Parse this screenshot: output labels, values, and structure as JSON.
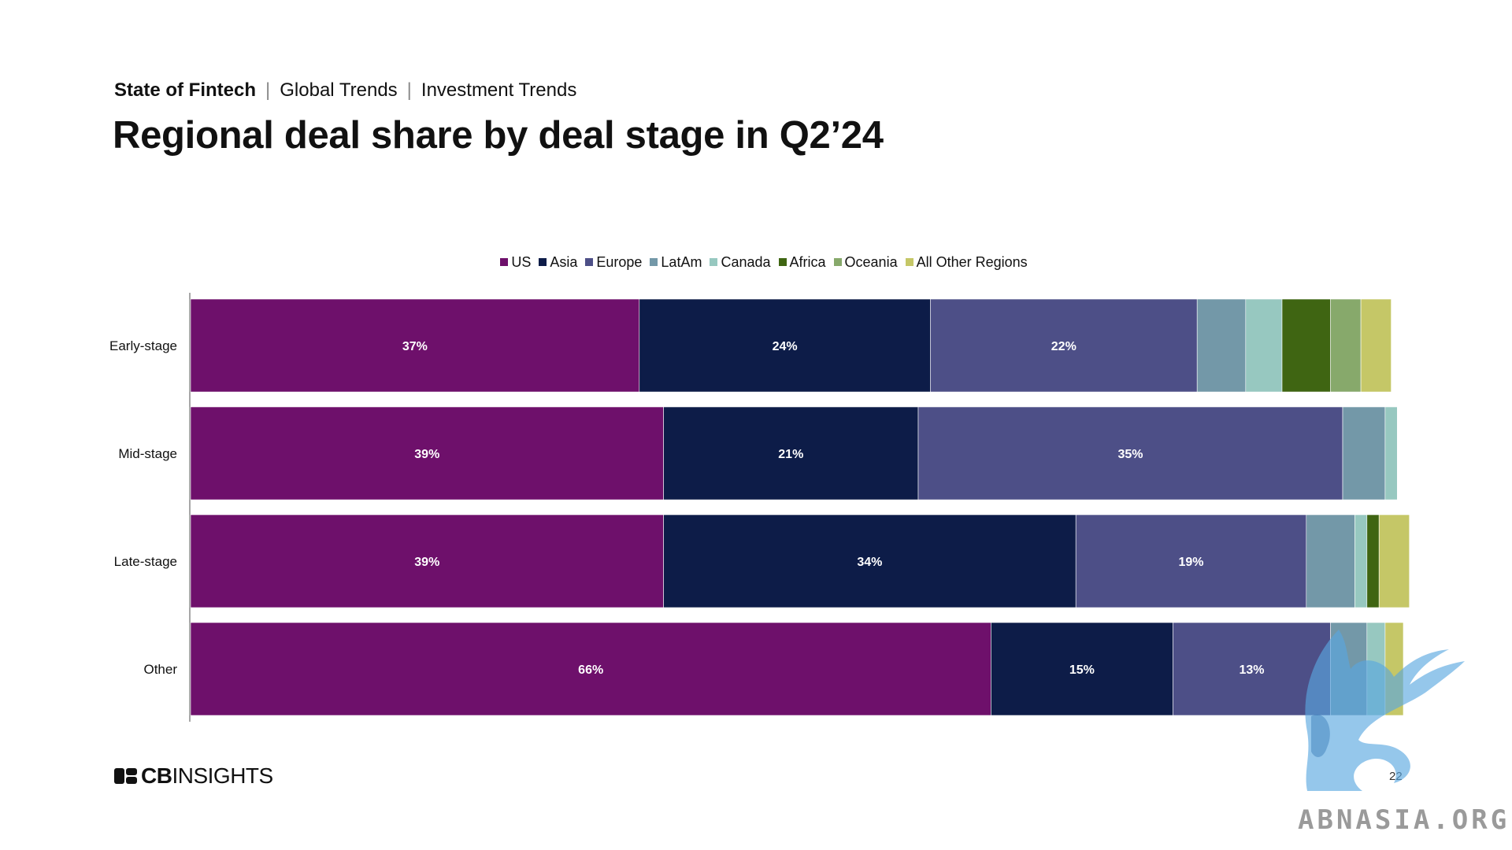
{
  "header": {
    "crumb_1": "State of Fintech",
    "crumb_2": "Global Trends",
    "crumb_3": "Investment Trends",
    "separator": "|",
    "title": "Regional deal share by deal stage in Q2’24"
  },
  "footer": {
    "logo_cb": "CB",
    "logo_insights": "INSIGHTS",
    "page_number": "22"
  },
  "watermark": {
    "text": "ABNASIA.ORG"
  },
  "chart_data": {
    "type": "bar",
    "orientation": "horizontal",
    "stacked": true,
    "percent_stacked": true,
    "categories": [
      "Early-stage",
      "Mid-stage",
      "Late-stage",
      "Other"
    ],
    "legend_position": "top",
    "grid": false,
    "xlim": [
      0,
      100
    ],
    "series": [
      {
        "name": "US",
        "color": "#6e106b",
        "values": [
          37,
          39,
          39,
          66
        ],
        "labels": [
          "37%",
          "39%",
          "39%",
          "66%"
        ]
      },
      {
        "name": "Asia",
        "color": "#0d1c48",
        "values": [
          24,
          21,
          34,
          15
        ],
        "labels": [
          "24%",
          "21%",
          "34%",
          "15%"
        ]
      },
      {
        "name": "Europe",
        "color": "#4d4f87",
        "values": [
          22,
          35,
          19,
          13
        ],
        "labels": [
          "22%",
          "35%",
          "19%",
          "13%"
        ]
      },
      {
        "name": "LatAm",
        "color": "#7398a8",
        "values": [
          4,
          3.5,
          4,
          3
        ],
        "labels": [
          "",
          "",
          "",
          ""
        ]
      },
      {
        "name": "Canada",
        "color": "#97c8c0",
        "values": [
          3,
          1,
          1,
          1.5
        ],
        "labels": [
          "",
          "",
          "",
          ""
        ]
      },
      {
        "name": "Africa",
        "color": "#3f6512",
        "values": [
          4,
          0,
          1,
          0
        ],
        "labels": [
          "",
          "",
          "",
          ""
        ]
      },
      {
        "name": "Oceania",
        "color": "#87a96b",
        "values": [
          2.5,
          0,
          0,
          0
        ],
        "labels": [
          "",
          "",
          "",
          ""
        ]
      },
      {
        "name": "All Other Regions",
        "color": "#c5c767",
        "values": [
          2.5,
          0,
          2.5,
          1.5
        ],
        "labels": [
          "",
          "",
          "",
          ""
        ]
      }
    ]
  }
}
